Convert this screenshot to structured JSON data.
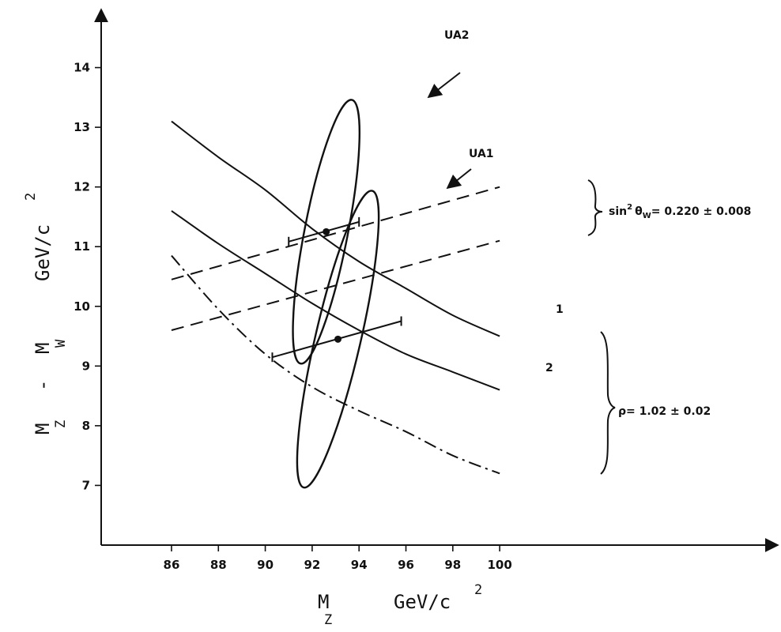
{
  "chart_data": {
    "type": "line",
    "xlabel": {
      "main": "M",
      "sub": "Z",
      "units": "GeV/c",
      "sup": "2"
    },
    "ylabel": {
      "main": "M",
      "sub_a": "Z",
      "minus": "-",
      "main_b": "M",
      "sub_b": "W",
      "units": "GeV/c",
      "sup": "2"
    },
    "xlim": [
      83,
      112
    ],
    "ylim": [
      6,
      15
    ],
    "x_ticks": [
      86,
      88,
      90,
      92,
      94,
      96,
      98,
      100
    ],
    "y_ticks": [
      7,
      8,
      9,
      10,
      11,
      12,
      13,
      14
    ],
    "x_tick_labels": [
      "86",
      "88",
      "90",
      "92",
      "94",
      "96",
      "98",
      "100"
    ],
    "y_tick_labels": [
      "7",
      "8",
      "9",
      "10",
      "11",
      "12",
      "13",
      "14"
    ],
    "grid": false,
    "series": [
      {
        "name": "1",
        "style": "solid",
        "x": [
          86,
          88,
          90,
          92,
          94,
          96,
          98,
          100
        ],
        "y": [
          13.1,
          12.5,
          11.95,
          11.3,
          10.75,
          10.3,
          9.85,
          9.5
        ]
      },
      {
        "name": "2",
        "style": "solid",
        "x": [
          86,
          88,
          90,
          92,
          94,
          96,
          98,
          100
        ],
        "y": [
          11.6,
          11.05,
          10.55,
          10.05,
          9.6,
          9.2,
          8.9,
          8.6
        ]
      },
      {
        "style": "dashed",
        "x": [
          86,
          100
        ],
        "y": [
          10.45,
          12.0
        ]
      },
      {
        "style": "dashed",
        "x": [
          86,
          100
        ],
        "y": [
          9.6,
          11.1
        ]
      },
      {
        "style": "dashdot",
        "x": [
          86,
          88,
          90,
          92,
          94,
          96,
          98,
          100
        ],
        "y": [
          10.85,
          9.95,
          9.2,
          8.65,
          8.25,
          7.9,
          7.5,
          7.2
        ]
      }
    ],
    "ellipses": [
      {
        "name": "UA2",
        "cx": 92.6,
        "cy": 11.25,
        "rx_along": 2.25,
        "ry_across": 0.42,
        "slope_deg": 79
      },
      {
        "name": "UA1",
        "cx": 93.1,
        "cy": 9.45,
        "rx_along": 2.55,
        "ry_across": 0.44,
        "slope_deg": 77
      }
    ],
    "error_bars": [
      {
        "x": 92.6,
        "y": 11.25,
        "x_lo": 91.0,
        "x_hi": 94.0
      },
      {
        "x": 93.1,
        "y": 9.45,
        "x_lo": 90.3,
        "x_hi": 95.8
      }
    ],
    "annotations": {
      "ua2": "UA2",
      "ua1": "UA1",
      "curve1": "1",
      "curve2": "2",
      "sin2_prefix": "sin",
      "sin2_sup": "2",
      "theta": "θ",
      "theta_sub": "W",
      "sin2_value": "= 0.220 ± 0.008",
      "rho": "ρ= 1.02 ± 0.02"
    }
  }
}
